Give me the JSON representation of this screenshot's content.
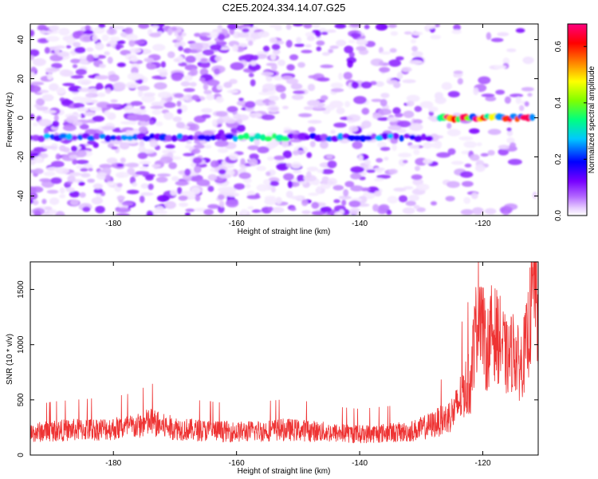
{
  "figure": {
    "title": "C2E5.2024.334.14.07.G25"
  },
  "chart_data": [
    {
      "type": "heatmap",
      "xlabel": "Height of straight line (km)",
      "ylabel": "Frequency (Hz)",
      "xlim": [
        -193.5,
        -111
      ],
      "ylim": [
        -50,
        48
      ],
      "x_ticks": [
        -180,
        -160,
        -140,
        -120
      ],
      "y_ticks": [
        -40,
        -20,
        0,
        20,
        40
      ],
      "colorbar": {
        "label": "Normalized spectral amplitude",
        "range": [
          0,
          0.68
        ],
        "ticks": [
          0.0,
          0.2,
          0.4,
          0.6
        ],
        "tick_labels": [
          "0.0",
          "0.2",
          "0.4",
          "0.6"
        ]
      },
      "colormap": [
        "#ffffff",
        "#e6ccff",
        "#b266ff",
        "#7700ff",
        "#0000ff",
        "#00c8ff",
        "#00ff80",
        "#80ff00",
        "#ffff00",
        "#ff8000",
        "#ff0000",
        "#ff0080"
      ],
      "features": [
        {
          "description": "horizontal line",
          "frequency": -10,
          "x_range": [
            -193.5,
            -128
          ],
          "amplitude": 0.22
        },
        {
          "description": "horizontal line",
          "frequency": 0,
          "x_range": [
            -127,
            -112
          ],
          "amplitude": 0.6
        }
      ]
    },
    {
      "type": "line",
      "xlabel": "Height of straight line (km)",
      "ylabel": "SNR (10 * v/v)",
      "xlim": [
        -193.5,
        -111
      ],
      "ylim": [
        0,
        1750
      ],
      "x_ticks": [
        -180,
        -160,
        -140,
        -120
      ],
      "y_ticks": [
        0,
        500,
        1000,
        1500
      ],
      "line_color": "#ee3333",
      "series": [
        {
          "x": [
            -193.5,
            -190,
            -185,
            -180,
            -176,
            -174,
            -172,
            -168,
            -164,
            -160,
            -156,
            -152,
            -148,
            -144,
            -140,
            -136,
            -132,
            -130,
            -128,
            -126,
            -124.5,
            -123,
            -122,
            -121,
            -120.5,
            -120,
            -119.5,
            -118.5,
            -117,
            -116,
            -115,
            -114,
            -113,
            -112,
            -111.5,
            -111
          ],
          "y": [
            200,
            220,
            230,
            240,
            260,
            300,
            260,
            230,
            220,
            210,
            220,
            230,
            220,
            200,
            190,
            200,
            210,
            240,
            280,
            330,
            400,
            600,
            650,
            1050,
            1300,
            1050,
            800,
            1000,
            900,
            750,
            850,
            700,
            850,
            1200,
            1500,
            1000
          ]
        }
      ]
    }
  ]
}
